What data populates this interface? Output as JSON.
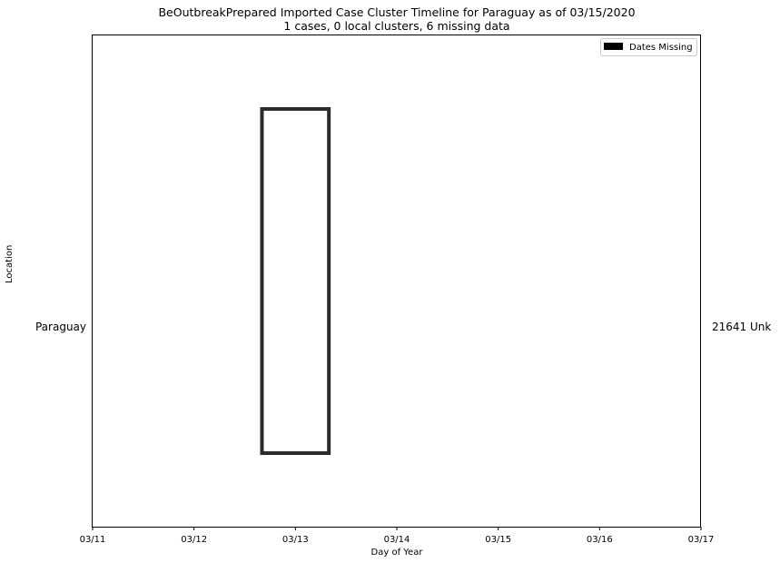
{
  "title_line1": "BeOutbreakPrepared Imported Case Cluster Timeline for Paraguay as of 03/15/2020",
  "title_line2": "1 cases, 0 local clusters, 6 missing data",
  "chart_data": {
    "type": "bar",
    "orientation": "horizontal-timeline",
    "xlabel": "Day of Year",
    "ylabel": "Location",
    "x_ticks": [
      "03/11",
      "03/12",
      "03/13",
      "03/14",
      "03/15",
      "03/16",
      "03/17"
    ],
    "xlim": [
      "03/11",
      "03/17"
    ],
    "categories": [
      "Paraguay"
    ],
    "right_labels": [
      "21641 Unk"
    ],
    "bars": [
      {
        "category": "Paraguay",
        "start": "03/12 16:00",
        "end": "03/13 08:00",
        "start_day": 1.67,
        "end_day": 2.33,
        "fill": "none",
        "edge": "#2b2b2b"
      }
    ],
    "legend": {
      "placement": "top-right",
      "entries": [
        {
          "label": "Dates Missing",
          "color": "#000000"
        }
      ]
    },
    "grid": false
  }
}
